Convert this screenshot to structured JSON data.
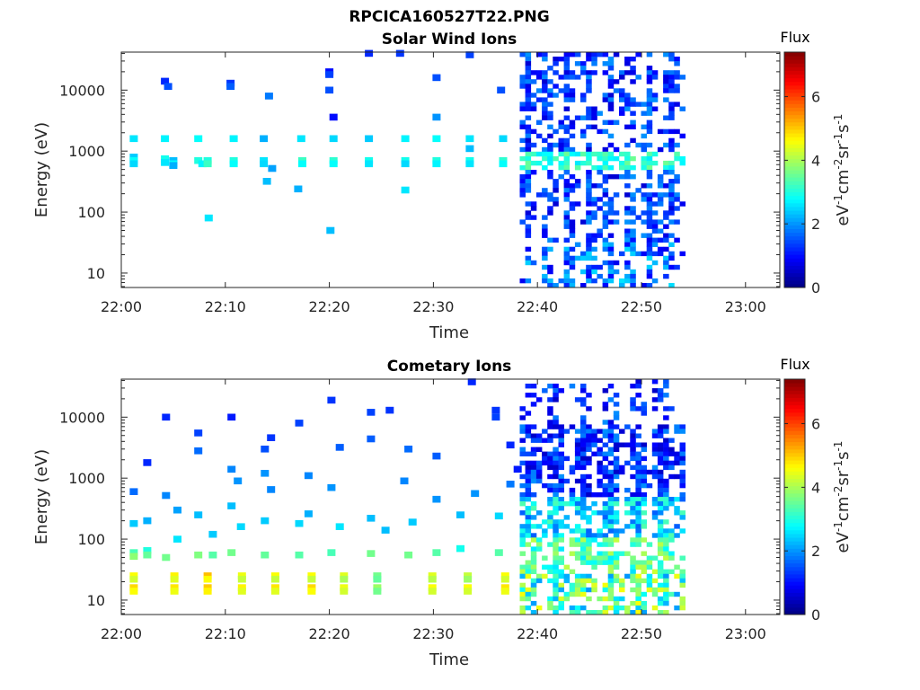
{
  "figure": {
    "title": "RPCICA160527T22.PNG"
  },
  "colorbar": {
    "label": "Flux",
    "unit_parts": [
      "eV",
      "-1",
      "cm",
      "-2",
      "sr",
      "-1",
      "s",
      "-1"
    ],
    "range": [
      0,
      7.4
    ],
    "ticks": [
      0,
      2,
      4,
      6
    ],
    "tick_labels": [
      "0",
      "2",
      "4",
      "6"
    ]
  },
  "chart_data": [
    {
      "type": "heatmap",
      "title": "Solar Wind Ions",
      "xlabel": "Time",
      "ylabel": "Energy (eV)",
      "x_ticks": [
        "22:00",
        "22:10",
        "22:20",
        "22:30",
        "22:40",
        "22:50",
        "23:00"
      ],
      "y_ticks": [
        "10",
        "100",
        "1000",
        "10000"
      ],
      "x_range_minutes": [
        0,
        63.3
      ],
      "y_scale": "log",
      "y_range_ev": [
        5.8,
        42000
      ],
      "grid": false,
      "cells": [
        [
          1.2,
          1600,
          2.6
        ],
        [
          1.2,
          800,
          2.4
        ],
        [
          1.2,
          700,
          2.8
        ],
        [
          1.2,
          620,
          2.5
        ],
        [
          4.2,
          1600,
          2.7
        ],
        [
          4.2,
          750,
          2.9
        ],
        [
          4.2,
          650,
          2.6
        ],
        [
          4.2,
          14000,
          1.2
        ],
        [
          4.5,
          11500,
          1.5
        ],
        [
          5.0,
          700,
          2.3
        ],
        [
          5.0,
          620,
          2.8
        ],
        [
          5.0,
          580,
          2.2
        ],
        [
          7.4,
          1600,
          2.8
        ],
        [
          7.4,
          700,
          3.0
        ],
        [
          7.8,
          620,
          2.7
        ],
        [
          8.3,
          700,
          3.0
        ],
        [
          8.3,
          620,
          3.2
        ],
        [
          8.4,
          80,
          2.6
        ],
        [
          10.5,
          13000,
          1.3
        ],
        [
          10.5,
          11500,
          1.6
        ],
        [
          10.8,
          1600,
          2.7
        ],
        [
          10.8,
          700,
          3.0
        ],
        [
          10.8,
          620,
          2.8
        ],
        [
          13.7,
          1600,
          2.2
        ],
        [
          13.7,
          700,
          2.6
        ],
        [
          13.7,
          620,
          2.5
        ],
        [
          14.2,
          8000,
          1.8
        ],
        [
          14.5,
          520,
          2.1
        ],
        [
          14.0,
          320,
          2.3
        ],
        [
          17.3,
          1600,
          2.6
        ],
        [
          17.4,
          700,
          3.2
        ],
        [
          17.4,
          620,
          2.8
        ],
        [
          17.0,
          240,
          2.2
        ],
        [
          20.0,
          20000,
          1.0
        ],
        [
          20.0,
          18000,
          1.4
        ],
        [
          20.0,
          10000,
          1.5
        ],
        [
          20.4,
          3600,
          1.0
        ],
        [
          20.4,
          1600,
          2.5
        ],
        [
          20.4,
          700,
          3.1
        ],
        [
          20.4,
          620,
          2.8
        ],
        [
          20.1,
          50,
          2.3
        ],
        [
          23.8,
          40000,
          1.2
        ],
        [
          23.8,
          1600,
          2.4
        ],
        [
          23.8,
          700,
          2.9
        ],
        [
          23.8,
          620,
          2.6
        ],
        [
          26.8,
          40000,
          1.3
        ],
        [
          27.3,
          1600,
          2.7
        ],
        [
          27.3,
          700,
          2.9
        ],
        [
          27.3,
          620,
          2.5
        ],
        [
          27.3,
          230,
          2.6
        ],
        [
          30.3,
          16000,
          1.5
        ],
        [
          30.3,
          3600,
          2.0
        ],
        [
          30.3,
          1600,
          2.8
        ],
        [
          30.3,
          700,
          3.0
        ],
        [
          30.3,
          620,
          2.7
        ],
        [
          33.5,
          38000,
          1.4
        ],
        [
          33.5,
          1600,
          2.6
        ],
        [
          33.5,
          1100,
          2.3
        ],
        [
          33.5,
          700,
          2.9
        ],
        [
          33.5,
          620,
          2.6
        ],
        [
          36.5,
          10000,
          1.5
        ],
        [
          36.7,
          1600,
          2.5
        ],
        [
          36.7,
          700,
          3.1
        ],
        [
          36.7,
          620,
          2.8
        ]
      ]
    },
    {
      "type": "heatmap",
      "title": "Cometary Ions",
      "xlabel": "Time",
      "ylabel": "Energy (eV)",
      "x_ticks": [
        "22:00",
        "22:10",
        "22:20",
        "22:30",
        "22:40",
        "22:50",
        "23:00"
      ],
      "y_ticks": [
        "10",
        "100",
        "1000",
        "10000"
      ],
      "x_range_minutes": [
        0,
        63.3
      ],
      "y_scale": "log",
      "y_range_ev": [
        5.8,
        42000
      ],
      "grid": false,
      "cells": [
        [
          1.2,
          600,
          1.7
        ],
        [
          1.2,
          180,
          2.4
        ],
        [
          1.2,
          60,
          3.3
        ],
        [
          1.2,
          52,
          3.8
        ],
        [
          1.2,
          25,
          4.6
        ],
        [
          1.2,
          22,
          4.3
        ],
        [
          1.2,
          16,
          4.9
        ],
        [
          1.2,
          14,
          4.6
        ],
        [
          2.5,
          1800,
          1.2
        ],
        [
          2.5,
          200,
          2.2
        ],
        [
          2.5,
          65,
          3.0
        ],
        [
          2.5,
          55,
          3.5
        ],
        [
          4.3,
          10000,
          1.2
        ],
        [
          4.3,
          520,
          1.9
        ],
        [
          4.3,
          50,
          3.6
        ],
        [
          5.1,
          25,
          4.7
        ],
        [
          5.1,
          22,
          4.4
        ],
        [
          5.1,
          16,
          4.8
        ],
        [
          5.1,
          14,
          4.5
        ],
        [
          5.4,
          300,
          2.1
        ],
        [
          5.4,
          100,
          2.6
        ],
        [
          7.4,
          5500,
          1.4
        ],
        [
          7.4,
          2800,
          1.7
        ],
        [
          7.4,
          250,
          2.3
        ],
        [
          7.4,
          55,
          3.7
        ],
        [
          8.3,
          25,
          5.1
        ],
        [
          8.3,
          22,
          4.6
        ],
        [
          8.3,
          16,
          5.0
        ],
        [
          8.3,
          14,
          4.7
        ],
        [
          8.8,
          120,
          2.4
        ],
        [
          8.8,
          55,
          3.4
        ],
        [
          10.6,
          10000,
          1.1
        ],
        [
          10.6,
          1400,
          1.9
        ],
        [
          10.6,
          350,
          2.3
        ],
        [
          10.6,
          60,
          3.6
        ],
        [
          11.6,
          25,
          4.5
        ],
        [
          11.6,
          22,
          4.2
        ],
        [
          11.6,
          16,
          4.7
        ],
        [
          11.6,
          14,
          4.4
        ],
        [
          11.2,
          900,
          2.0
        ],
        [
          11.5,
          160,
          2.5
        ],
        [
          13.8,
          3000,
          1.5
        ],
        [
          13.8,
          1200,
          2.0
        ],
        [
          13.8,
          200,
          2.4
        ],
        [
          13.8,
          55,
          3.5
        ],
        [
          14.8,
          25,
          4.6
        ],
        [
          14.8,
          22,
          4.2
        ],
        [
          14.8,
          16,
          4.8
        ],
        [
          14.8,
          14,
          4.4
        ],
        [
          14.4,
          4600,
          1.3
        ],
        [
          14.4,
          650,
          1.9
        ],
        [
          17.1,
          8000,
          1.4
        ],
        [
          17.1,
          180,
          2.5
        ],
        [
          17.1,
          55,
          3.4
        ],
        [
          18.3,
          25,
          4.6
        ],
        [
          18.3,
          22,
          4.2
        ],
        [
          18.3,
          16,
          4.9
        ],
        [
          18.3,
          14,
          4.6
        ],
        [
          18.0,
          1100,
          1.9
        ],
        [
          18.0,
          260,
          2.2
        ],
        [
          20.2,
          19000,
          1.3
        ],
        [
          20.2,
          700,
          2.0
        ],
        [
          20.2,
          60,
          3.3
        ],
        [
          21.4,
          25,
          4.4
        ],
        [
          21.4,
          22,
          4.0
        ],
        [
          21.4,
          16,
          4.5
        ],
        [
          21.4,
          14,
          4.3
        ],
        [
          21.0,
          3200,
          1.6
        ],
        [
          21.0,
          160,
          2.6
        ],
        [
          24.0,
          12000,
          1.4
        ],
        [
          24.0,
          4400,
          1.6
        ],
        [
          24.0,
          220,
          2.3
        ],
        [
          24.0,
          58,
          3.6
        ],
        [
          24.6,
          25,
          3.6
        ],
        [
          24.6,
          22,
          3.5
        ],
        [
          24.6,
          16,
          3.9
        ],
        [
          24.6,
          14,
          3.6
        ],
        [
          25.4,
          140,
          2.3
        ],
        [
          25.8,
          13000,
          1.3
        ],
        [
          27.2,
          900,
          1.9
        ],
        [
          27.6,
          3000,
          1.7
        ],
        [
          27.6,
          55,
          3.6
        ],
        [
          28.0,
          190,
          2.4
        ],
        [
          29.9,
          25,
          4.4
        ],
        [
          29.9,
          22,
          4.1
        ],
        [
          29.9,
          16,
          4.6
        ],
        [
          29.9,
          14,
          4.3
        ],
        [
          30.3,
          2300,
          1.6
        ],
        [
          30.3,
          450,
          2.0
        ],
        [
          30.3,
          60,
          3.4
        ],
        [
          32.6,
          250,
          2.3
        ],
        [
          32.6,
          70,
          2.9
        ],
        [
          33.3,
          25,
          4.2
        ],
        [
          33.3,
          22,
          3.9
        ],
        [
          33.3,
          16,
          4.6
        ],
        [
          33.3,
          14,
          4.3
        ],
        [
          33.7,
          38000,
          1.2
        ],
        [
          34.0,
          560,
          2.0
        ],
        [
          36.0,
          13000,
          1.3
        ],
        [
          36.0,
          10000,
          1.4
        ],
        [
          36.3,
          240,
          2.5
        ],
        [
          36.3,
          60,
          3.4
        ],
        [
          36.9,
          25,
          4.6
        ],
        [
          36.9,
          22,
          4.3
        ],
        [
          36.9,
          16,
          4.8
        ],
        [
          36.9,
          14,
          4.5
        ],
        [
          37.4,
          800,
          1.8
        ],
        [
          37.4,
          3500,
          1.2
        ],
        [
          38.1,
          1400,
          1.1
        ]
      ]
    }
  ]
}
